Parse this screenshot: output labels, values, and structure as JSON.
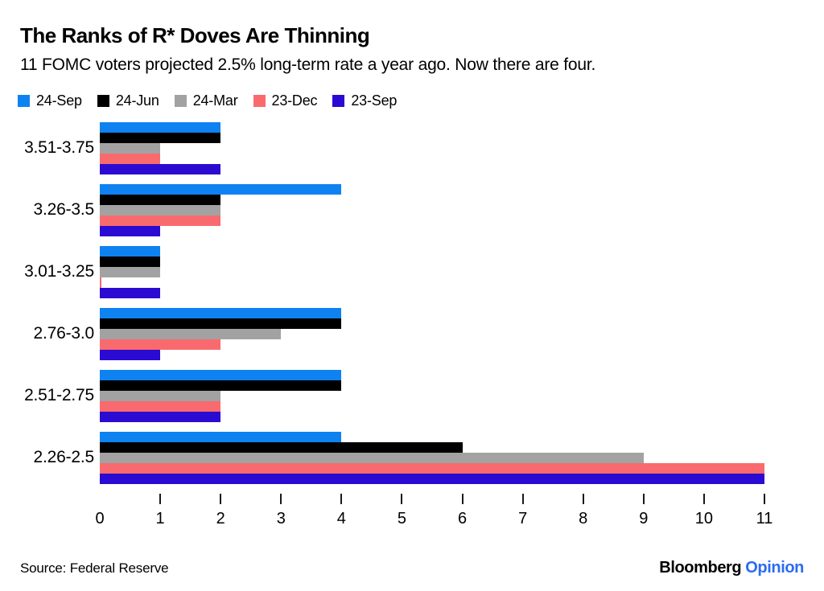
{
  "header": {
    "title": "The Ranks of R* Doves Are Thinning",
    "subtitle": "11 FOMC voters projected 2.5% long-term rate a year ago. Now there are four."
  },
  "legend": [
    {
      "label": "24-Sep",
      "color": "#0e82f1"
    },
    {
      "label": "24-Jun",
      "color": "#000000"
    },
    {
      "label": "24-Mar",
      "color": "#a2a2a2"
    },
    {
      "label": "23-Dec",
      "color": "#f96a6e"
    },
    {
      "label": "23-Sep",
      "color": "#2b0ad2"
    }
  ],
  "chart_data": {
    "type": "bar",
    "orientation": "horizontal",
    "title": "The Ranks of R* Doves Are Thinning",
    "subtitle": "11 FOMC voters projected 2.5% long-term rate a year ago. Now there are four.",
    "xlabel": "",
    "ylabel": "",
    "xlim": [
      0,
      11
    ],
    "x_ticks": [
      0,
      1,
      2,
      3,
      4,
      5,
      6,
      7,
      8,
      9,
      10,
      11
    ],
    "grid": false,
    "legend_position": "top",
    "categories": [
      "3.51-3.75",
      "3.26-3.5",
      "3.01-3.25",
      "2.76-3.0",
      "2.51-2.75",
      "2.26-2.5"
    ],
    "series": [
      {
        "name": "24-Sep",
        "color": "#0e82f1",
        "values": [
          2,
          4,
          1,
          4,
          4,
          4
        ]
      },
      {
        "name": "24-Jun",
        "color": "#000000",
        "values": [
          2,
          2,
          1,
          4,
          4,
          6
        ]
      },
      {
        "name": "24-Mar",
        "color": "#a2a2a2",
        "values": [
          1,
          2,
          1,
          3,
          2,
          9
        ]
      },
      {
        "name": "23-Dec",
        "color": "#f96a6e",
        "values": [
          1,
          2,
          0,
          2,
          2,
          11
        ]
      },
      {
        "name": "23-Sep",
        "color": "#2b0ad2",
        "values": [
          2,
          1,
          1,
          1,
          2,
          11
        ]
      }
    ]
  },
  "footer": {
    "source": "Source: Federal Reserve",
    "brand": "Bloomberg",
    "brand_suffix": "Opinion",
    "brand_suffix_color": "#2b6cf0"
  }
}
